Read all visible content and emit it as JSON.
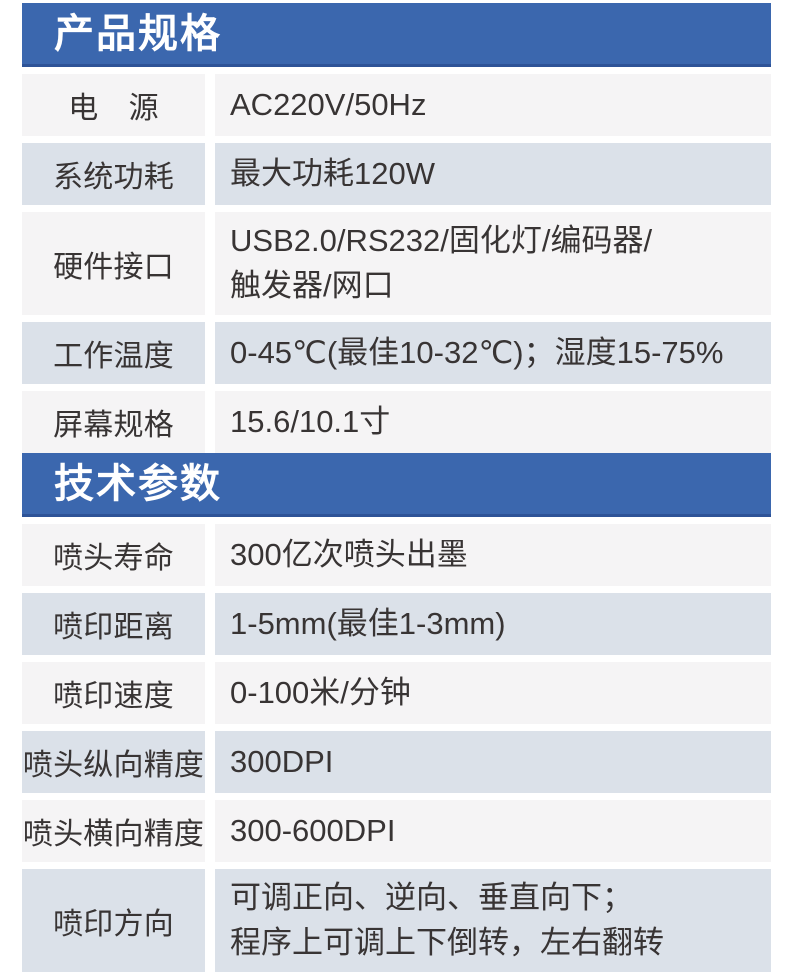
{
  "colors": {
    "header_bg": "#3b67ae",
    "header_border": "#2e5397",
    "header_text": "#ffffff",
    "row_light": "#f5f4f5",
    "row_shaded": "#dbe1e9",
    "text": "#383434",
    "page_bg": "#ffffff"
  },
  "sections": [
    {
      "title": "产品规格",
      "rows": [
        {
          "label": "电　源",
          "value": "AC220V/50Hz"
        },
        {
          "label": "系统功耗",
          "value": "最大功耗120W"
        },
        {
          "label": "硬件接口",
          "value": "USB2.0/RS232/固化灯/编码器/\n触发器/网口"
        },
        {
          "label": "工作温度",
          "value": "0-45℃(最佳10-32℃)；湿度15-75%"
        },
        {
          "label": "屏幕规格",
          "value": "15.6/10.1寸"
        }
      ]
    },
    {
      "title": "技术参数",
      "rows": [
        {
          "label": "喷头寿命",
          "value": "300亿次喷头出墨"
        },
        {
          "label": "喷印距离",
          "value": "1-5mm(最佳1-3mm)"
        },
        {
          "label": "喷印速度",
          "value": "0-100米/分钟"
        },
        {
          "label": "喷头纵向精度",
          "value": "300DPI"
        },
        {
          "label": "喷头横向精度",
          "value": "300-600DPI"
        },
        {
          "label": "喷印方向",
          "value": "可调正向、逆向、垂直向下；\n程序上可调上下倒转，左右翻转"
        }
      ]
    }
  ]
}
